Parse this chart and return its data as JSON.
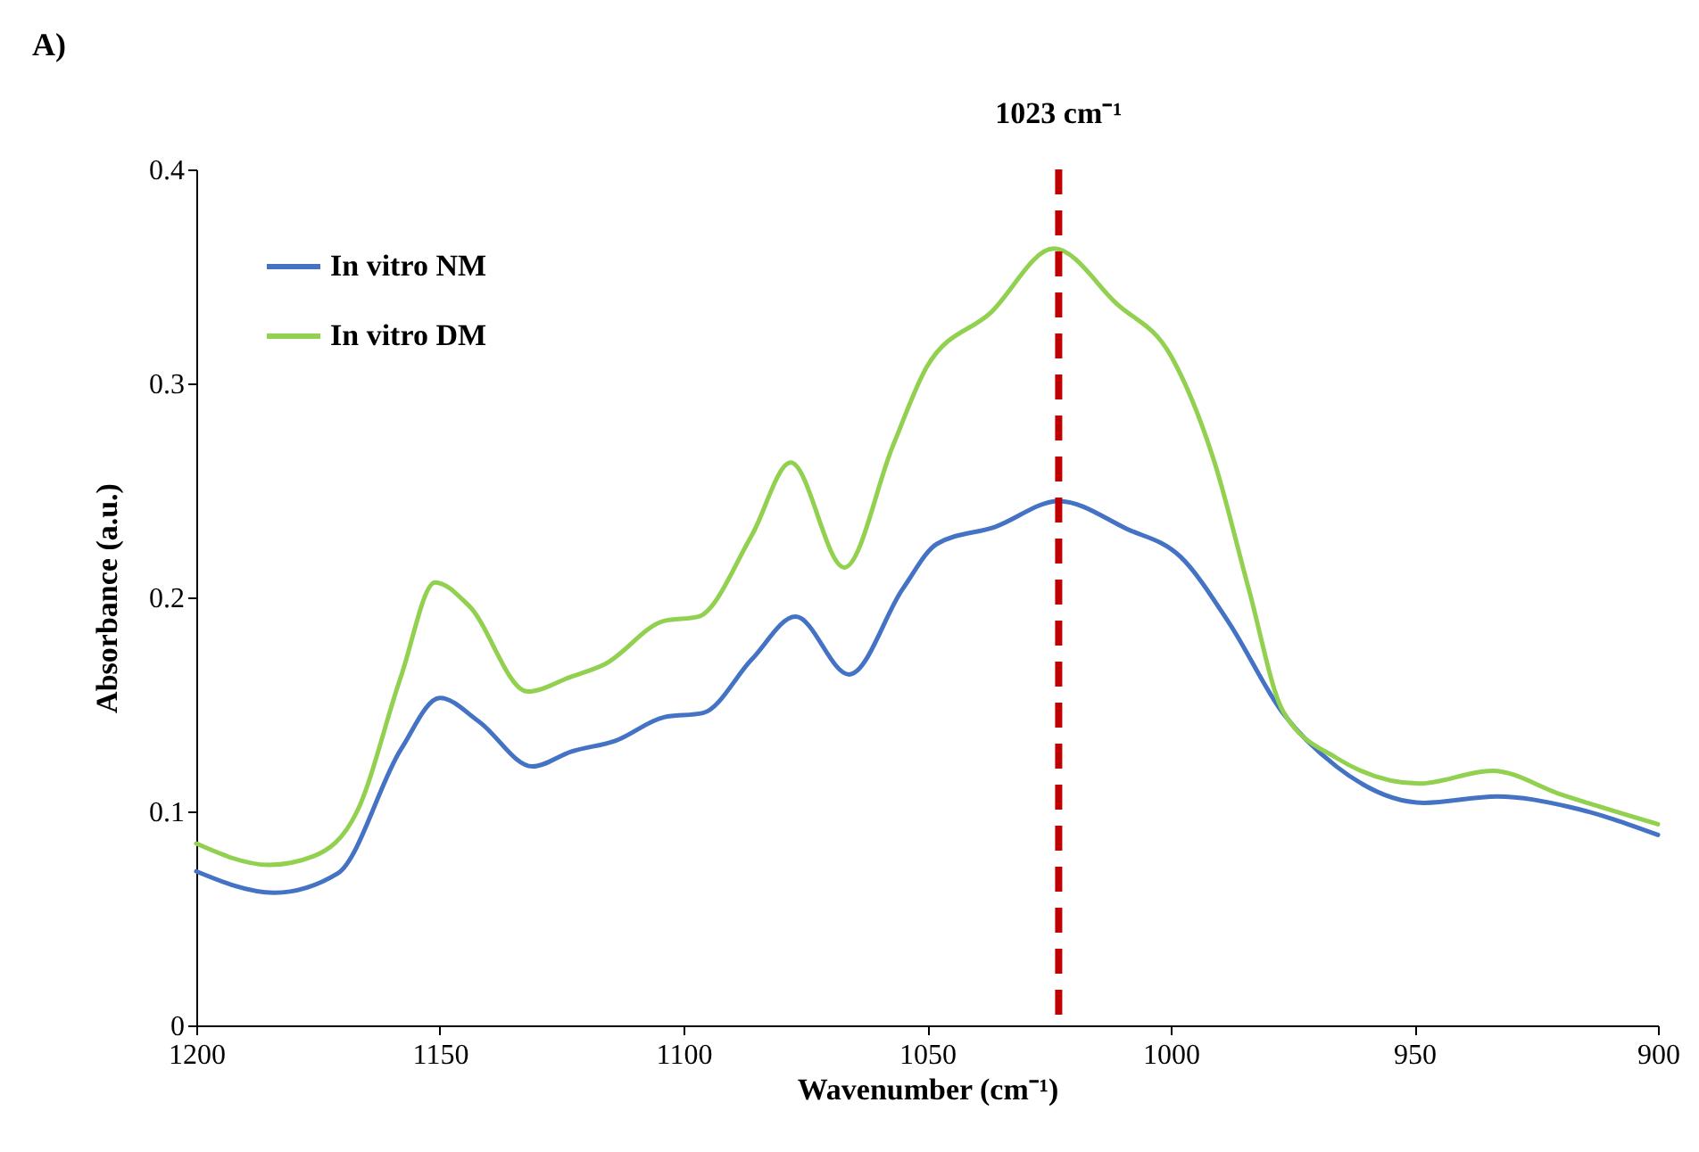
{
  "chart_data": {
    "type": "line",
    "xlabel": "Wavenumber (cm⁻¹)",
    "ylabel": "Absorbance (a.u.)",
    "xlim": [
      1200,
      900
    ],
    "xticks": [
      1200,
      1150,
      1100,
      1050,
      1000,
      950,
      900
    ],
    "ylim": [
      0,
      0.4
    ],
    "yticks": [
      0,
      0.1,
      0.2,
      0.3,
      0.4
    ],
    "legend": "top left",
    "grid": false,
    "annotations": [
      "A)"
    ],
    "ref_lines": [
      {
        "axis": "x",
        "value": 1023,
        "label": "1023 cm⁻¹",
        "color": "#c00000",
        "line_style": "dashed"
      }
    ],
    "series": [
      {
        "name": "In vitro NM",
        "color": "#4472c4",
        "x": [
          1200,
          1184,
          1171,
          1158,
          1150,
          1142,
          1131,
          1123,
          1114,
          1104,
          1096,
          1086,
          1077,
          1066,
          1055,
          1048,
          1036,
          1023,
          1009,
          998,
          988,
          977,
          966,
          948,
          933,
          918,
          900
        ],
        "values": [
          0.072,
          0.062,
          0.071,
          0.129,
          0.153,
          0.142,
          0.121,
          0.128,
          0.133,
          0.144,
          0.146,
          0.171,
          0.191,
          0.164,
          0.204,
          0.225,
          0.233,
          0.245,
          0.232,
          0.219,
          0.188,
          0.146,
          0.121,
          0.104,
          0.107,
          0.102,
          0.089
        ]
      },
      {
        "name": "In vitro DM",
        "color": "#92d050",
        "x": [
          1200,
          1185,
          1176,
          1167,
          1158,
          1151,
          1144,
          1132,
          1123,
          1116,
          1104,
          1097,
          1086,
          1078,
          1067,
          1057,
          1050,
          1037,
          1024,
          1011,
          1000,
          991,
          984,
          977,
          966,
          949,
          934,
          920,
          900
        ],
        "values": [
          0.085,
          0.075,
          0.079,
          0.1,
          0.163,
          0.207,
          0.196,
          0.156,
          0.163,
          0.169,
          0.189,
          0.191,
          0.229,
          0.263,
          0.214,
          0.271,
          0.308,
          0.333,
          0.363,
          0.337,
          0.313,
          0.263,
          0.204,
          0.147,
          0.125,
          0.113,
          0.119,
          0.108,
          0.094
        ]
      }
    ]
  }
}
